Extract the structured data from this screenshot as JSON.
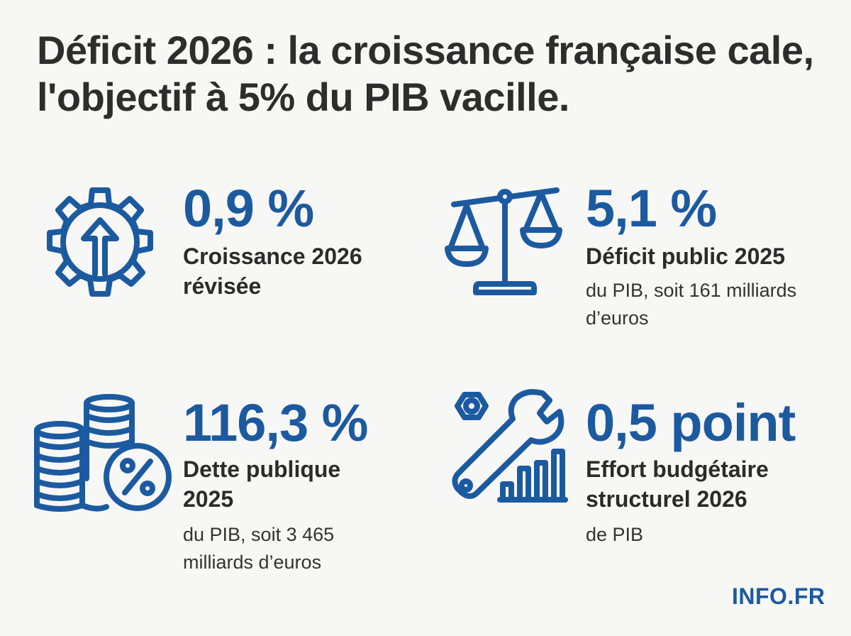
{
  "headline": "Déficit 2026 : la croissance française cale, l'objectif à 5% du PIB vacille.",
  "accent_color": "#1c5aa0",
  "text_color": "#2b2b2b",
  "stats": {
    "growth": {
      "icon": "gear-up-arrow-icon",
      "value": "0,9 %",
      "label": "Croissance 2026 révisée"
    },
    "deficit": {
      "icon": "scale-icon",
      "value": "5,1 %",
      "label": "Déficit public 2025",
      "note": "du PIB, soit 161 milliards d’euros"
    },
    "debt": {
      "icon": "coins-percent-icon",
      "value": "116,3 %",
      "label": "Dette publique 2025",
      "note": "du PIB, soit 3 465 milliards d’euros"
    },
    "effort": {
      "icon": "wrench-chart-icon",
      "value": "0,5 point",
      "label": "Effort budgétaire structurel 2026",
      "note": "de PIB"
    }
  },
  "brand": "INFO.FR"
}
